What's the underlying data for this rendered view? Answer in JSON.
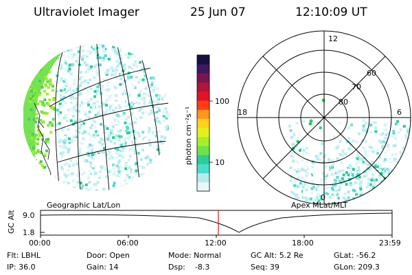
{
  "header": {
    "instrument": "Ultraviolet Imager",
    "date": "25 Jun 07",
    "time": "12:10:09 UT"
  },
  "colorbar": {
    "unit_label": "photon cm⁻²s⁻¹",
    "ticks": [
      "100",
      "10"
    ],
    "colors": [
      "#e8f7fa",
      "#b4ecec",
      "#4adccc",
      "#2ecc96",
      "#6ee24a",
      "#a6ee2a",
      "#e4f01e",
      "#ffd21e",
      "#ff961e",
      "#ff3c14",
      "#e01428",
      "#b0143c",
      "#7a1450",
      "#401860",
      "#181040"
    ]
  },
  "map_left": {
    "label": "Geographic Lat/Lon"
  },
  "map_right": {
    "label": "Apex MLat/MLT",
    "mlt_labels": [
      "12",
      "18",
      "6",
      "0"
    ],
    "lat_labels": [
      "60",
      "70",
      "80"
    ]
  },
  "altitude_plot": {
    "ylabel": "GC Alt",
    "yticks": [
      "9.0",
      "1.8"
    ],
    "xticks": [
      "00:00",
      "06:00",
      "12:00",
      "18:00",
      "23:59"
    ],
    "marker_time": "12:10:09"
  },
  "footer": {
    "flt": "Flt: LBHL",
    "ip": "IP: 36.0",
    "door": "Door: Open",
    "gain": "Gain: 14",
    "mode": "Mode: Normal",
    "dsp": "Dsp:    -8.3",
    "gc_alt": "GC Alt: 5.2 Re",
    "seq": "Seq: 39",
    "glat": "GLat: -56.2",
    "glon": "GLon: 209.3"
  }
}
